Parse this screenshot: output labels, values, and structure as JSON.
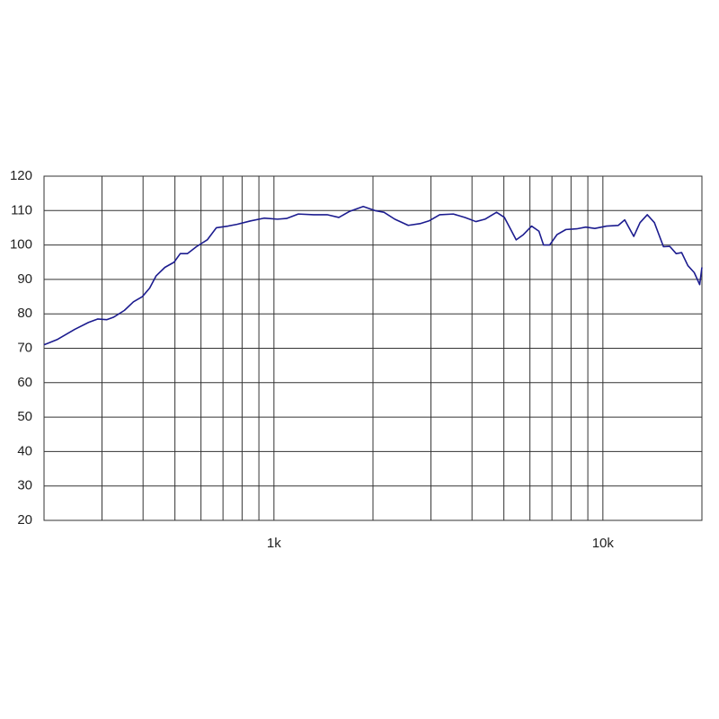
{
  "chart_data": {
    "type": "line",
    "xscale": "log",
    "xlim": [
      200,
      20000
    ],
    "xticks": [
      {
        "value": 1000,
        "label": "1k"
      },
      {
        "value": 10000,
        "label": "10k"
      }
    ],
    "xgrid": [
      300,
      400,
      500,
      600,
      700,
      800,
      900,
      2000,
      3000,
      4000,
      5000,
      6000,
      7000,
      8000,
      9000
    ],
    "ylim": [
      20,
      120
    ],
    "yticks": [
      20,
      30,
      40,
      50,
      60,
      70,
      80,
      90,
      100,
      110,
      120
    ],
    "grid": true,
    "x": [
      200,
      219,
      248,
      273,
      291,
      310,
      325,
      351,
      374,
      398,
      419,
      438,
      466,
      497,
      519,
      546,
      581,
      627,
      668,
      725,
      772,
      849,
      933,
      1025,
      1092,
      1186,
      1320,
      1451,
      1575,
      1700,
      1868,
      2027,
      2160,
      2330,
      2560,
      2780,
      2960,
      3190,
      3510,
      3810,
      4110,
      4380,
      4750,
      5020,
      5450,
      5730,
      6070,
      6390,
      6600,
      6890,
      7250,
      7720,
      8330,
      8870,
      9450,
      10260,
      11140,
      11650,
      12410,
      12970,
      13640,
      14340,
      15280,
      15970,
      16700,
      17350,
      18130,
      18950,
      19690,
      20000
    ],
    "series": [
      {
        "color": "#1c1c8f",
        "values": [
          71,
          72.5,
          75.5,
          77.5,
          78.5,
          78.3,
          79,
          81,
          83.5,
          85,
          87.5,
          91,
          93.5,
          95,
          97.5,
          97.5,
          99.5,
          101.5,
          105,
          105.5,
          106,
          107,
          107.8,
          107.5,
          107.7,
          109,
          108.8,
          108.8,
          108,
          109.8,
          111.2,
          110,
          109.5,
          107.5,
          105.7,
          106.2,
          107,
          108.8,
          109,
          108,
          106.8,
          107.5,
          109.5,
          108,
          101.5,
          103,
          105.5,
          104,
          100,
          100,
          103,
          104.5,
          104.7,
          105.2,
          104.8,
          105.5,
          105.7,
          107.3,
          102.5,
          106.5,
          108.8,
          106.5,
          99.5,
          99.6,
          97.5,
          97.8,
          94,
          92,
          88.5,
          93.5
        ]
      }
    ]
  }
}
